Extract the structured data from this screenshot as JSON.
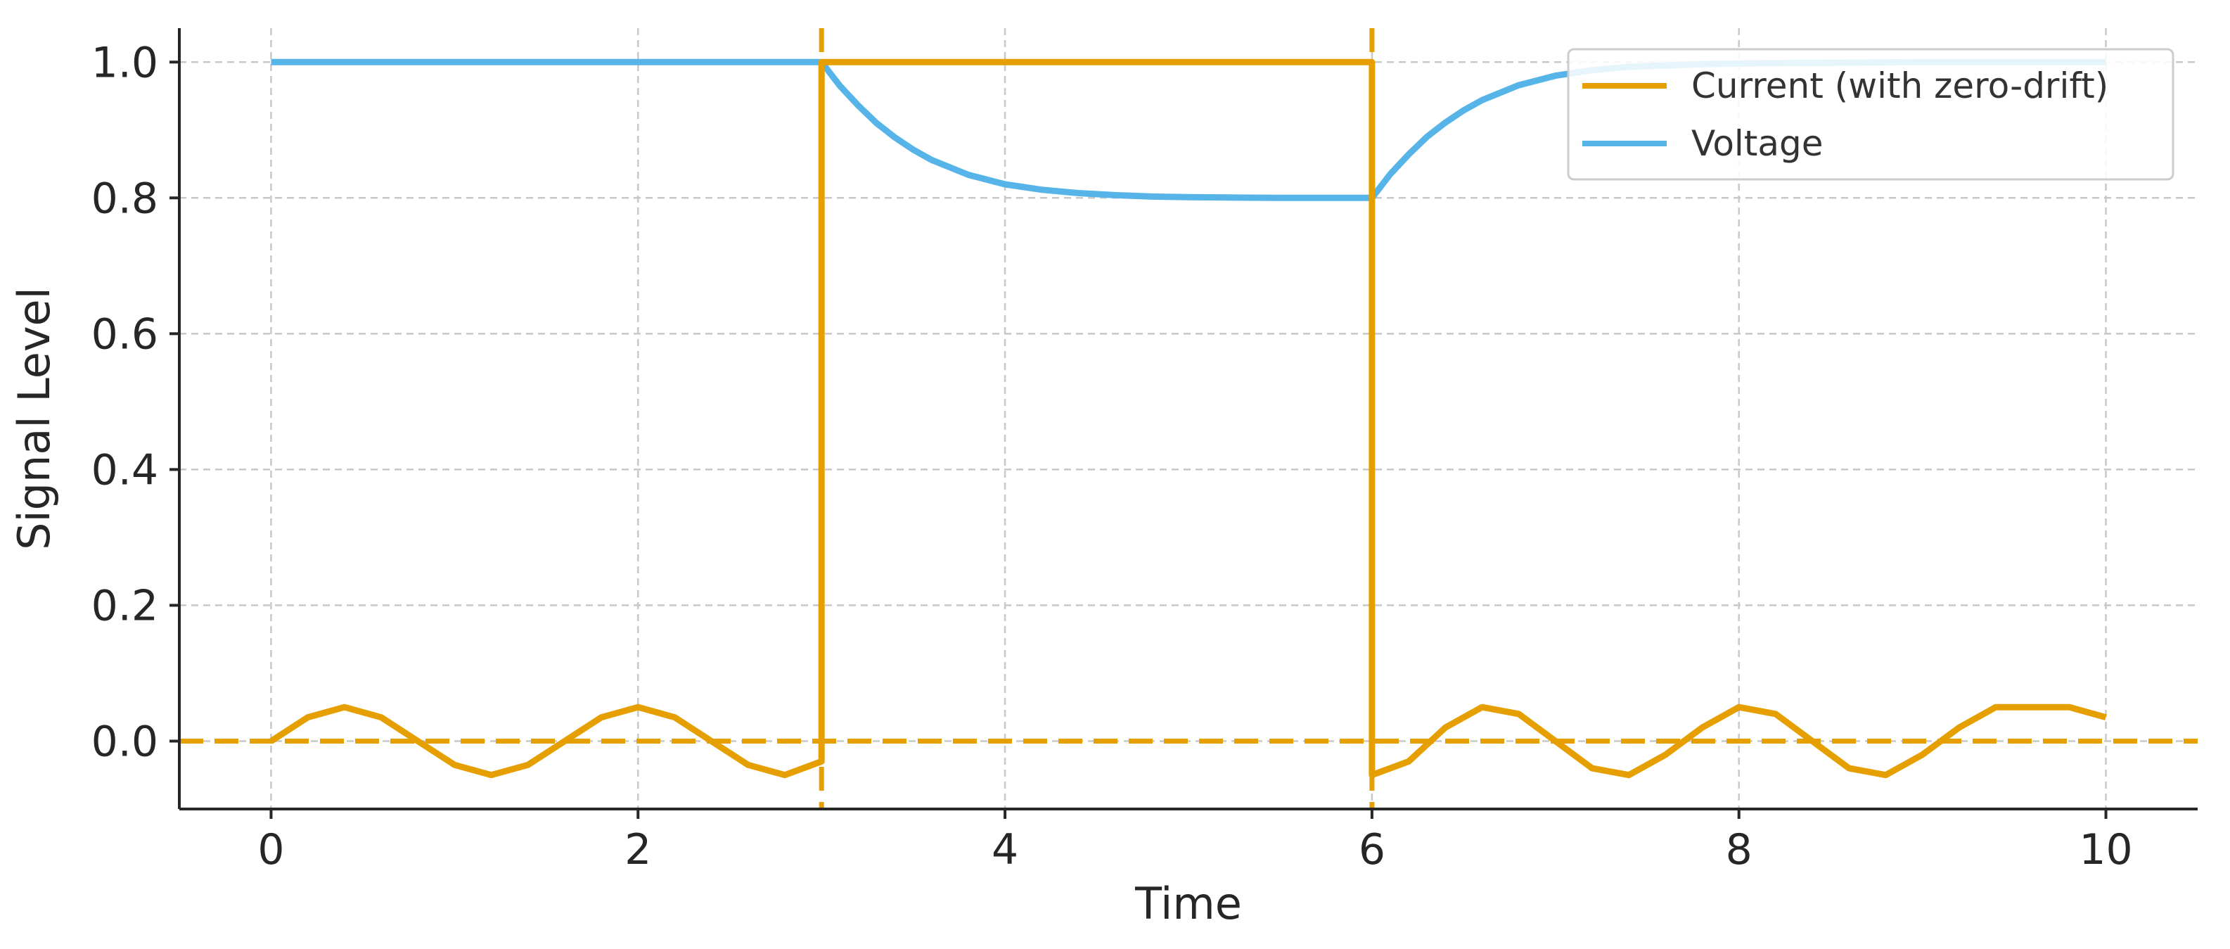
{
  "chart_data": {
    "type": "line",
    "title": "",
    "xlabel": "Time",
    "ylabel": "Signal Level",
    "xlim": [
      -0.5,
      10.5
    ],
    "ylim": [
      -0.1,
      1.05
    ],
    "xticks": [
      0,
      2,
      4,
      6,
      8,
      10
    ],
    "xtick_labels": [
      "0",
      "2",
      "4",
      "6",
      "8",
      "10"
    ],
    "yticks": [
      0.0,
      0.2,
      0.4,
      0.6,
      0.8,
      1.0
    ],
    "ytick_labels": [
      "0.0",
      "0.2",
      "0.4",
      "0.6",
      "0.8",
      "1.0"
    ],
    "grid": true,
    "legend": {
      "placement": "top-right",
      "entries": [
        "Current (with zero-drift)",
        "Voltage"
      ]
    },
    "series": [
      {
        "name": "Current (with zero-drift)",
        "color": "#E69F00",
        "line_style": "solid",
        "x": [
          0,
          0.2,
          0.4,
          0.6,
          0.8,
          1.0,
          1.2,
          1.4,
          1.6,
          1.8,
          2.0,
          2.2,
          2.4,
          2.6,
          2.8,
          3.0,
          3.0,
          6.0,
          6.0,
          6.2,
          6.4,
          6.6,
          6.8,
          7.0,
          7.2,
          7.4,
          7.6,
          7.8,
          8.0,
          8.2,
          8.4,
          8.6,
          8.8,
          9.0,
          9.2,
          9.4,
          9.6,
          9.8,
          10.0
        ],
        "y": [
          0.0,
          0.035,
          0.05,
          0.035,
          0.0,
          -0.035,
          -0.05,
          -0.035,
          0.0,
          0.035,
          0.05,
          0.035,
          0.0,
          -0.035,
          -0.05,
          -0.03,
          1.0,
          1.0,
          -0.05,
          -0.03,
          0.02,
          0.05,
          0.04,
          0.0,
          -0.04,
          -0.05,
          -0.02,
          0.02,
          0.05,
          0.04,
          0.0,
          -0.04,
          -0.05,
          -0.02,
          0.02,
          0.05,
          0.05,
          0.05,
          0.035
        ]
      },
      {
        "name": "Voltage",
        "color": "#56B4E9",
        "line_style": "solid",
        "x": [
          0,
          3.0,
          3.1,
          3.2,
          3.3,
          3.4,
          3.5,
          3.6,
          3.8,
          4.0,
          4.2,
          4.4,
          4.6,
          4.8,
          5.0,
          5.5,
          6.0,
          6.1,
          6.2,
          6.3,
          6.4,
          6.5,
          6.6,
          6.8,
          7.0,
          7.2,
          7.4,
          7.6,
          7.8,
          8.0,
          8.5,
          9.0,
          9.5,
          10.0
        ],
        "y": [
          1.0,
          1.0,
          0.965,
          0.936,
          0.91,
          0.889,
          0.871,
          0.856,
          0.834,
          0.82,
          0.812,
          0.807,
          0.804,
          0.802,
          0.801,
          0.8,
          0.8,
          0.835,
          0.864,
          0.89,
          0.911,
          0.929,
          0.944,
          0.966,
          0.98,
          0.988,
          0.993,
          0.995,
          0.997,
          0.998,
          0.999,
          1.0,
          1.0,
          1.0
        ]
      }
    ],
    "reference_lines": [
      {
        "orientation": "horizontal",
        "value": 0.0,
        "color": "#E69F00",
        "line_style": "dashed"
      },
      {
        "orientation": "vertical",
        "value": 3.0,
        "color": "#E69F00",
        "line_style": "dashed"
      },
      {
        "orientation": "vertical",
        "value": 6.0,
        "color": "#E69F00",
        "line_style": "dashed"
      }
    ]
  }
}
